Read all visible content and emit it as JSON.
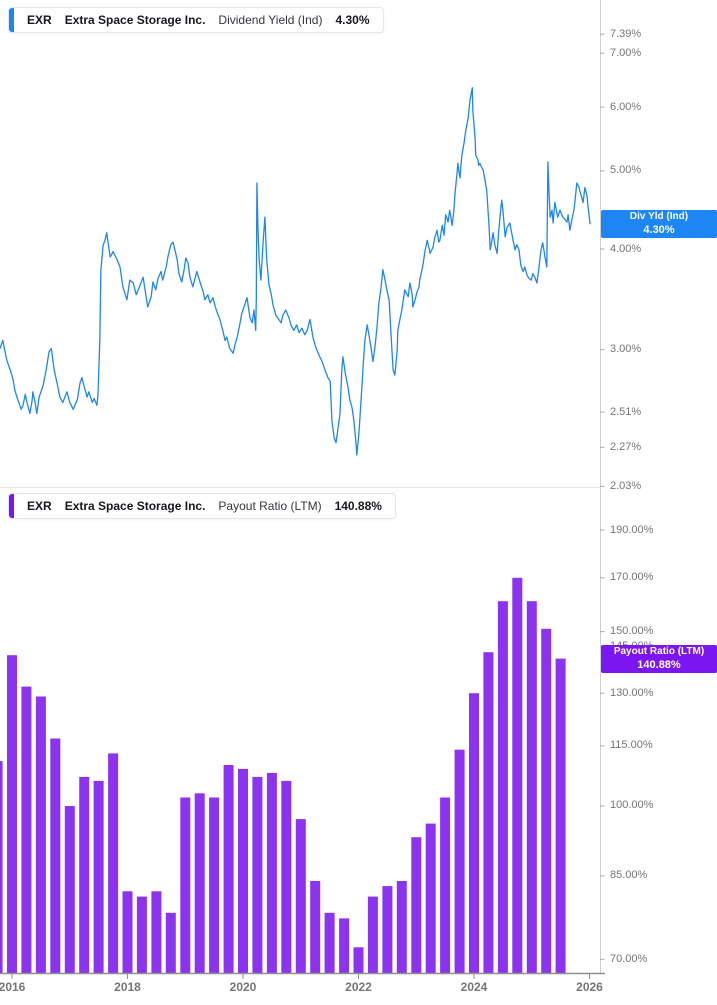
{
  "colors": {
    "line_blue": "#1d86f2",
    "badge_blue": "#1d86f2",
    "bar_purple": "#8c33f0",
    "badge_purple": "#7c16f0",
    "right_axis_line": "#cfcfcf",
    "panel_separator": "#e3e3e3",
    "bottom_axis_line": "#8f8f8f",
    "tick_mark": "#aaaaaa",
    "tick_text": "#757575"
  },
  "top_panel": {
    "legend": {
      "ticker": "EXR",
      "company": "Extra Space Storage Inc.",
      "metric": "Dividend Yield (Ind)",
      "value": "4.30%"
    },
    "badge": {
      "label": "Div Yld (Ind)",
      "value": "4.30%",
      "value_num": 4.3
    },
    "y_ticks": [
      {
        "label": "7.39%",
        "v": 7.39
      },
      {
        "label": "7.00%",
        "v": 7.0
      },
      {
        "label": "6.00%",
        "v": 6.0
      },
      {
        "label": "5.00%",
        "v": 5.0
      },
      {
        "label": "4.00%",
        "v": 4.0
      },
      {
        "label": "3.00%",
        "v": 3.0
      },
      {
        "label": "2.51%",
        "v": 2.51
      },
      {
        "label": "2.27%",
        "v": 2.27
      },
      {
        "label": "2.03%",
        "v": 2.03
      }
    ]
  },
  "bottom_panel": {
    "legend": {
      "ticker": "EXR",
      "company": "Extra Space Storage Inc.",
      "metric": "Payout Ratio (LTM)",
      "value": "140.88%"
    },
    "badge": {
      "label": "Payout Ratio (LTM)",
      "value": "140.88%",
      "value_num": 140.88
    },
    "y_ticks": [
      {
        "label": "190.00%",
        "v": 190
      },
      {
        "label": "170.00%",
        "v": 170
      },
      {
        "label": "150.00%",
        "v": 150
      },
      {
        "label": "145.00%",
        "v": 145
      },
      {
        "label": "130.00%",
        "v": 130
      },
      {
        "label": "115.00%",
        "v": 115
      },
      {
        "label": "100.00%",
        "v": 100
      },
      {
        "label": "85.00%",
        "v": 85
      },
      {
        "label": "70.00%",
        "v": 70
      }
    ]
  },
  "x_axis": {
    "year_labels": [
      "2016",
      "2018",
      "2020",
      "2022",
      "2024",
      "2026"
    ]
  },
  "chart_data": [
    {
      "type": "line",
      "title": "EXR Extra Space Storage Inc. Dividend Yield (Ind)",
      "unit": "%",
      "color": "#1d86f2",
      "y_scale": "log",
      "ylim": [
        1.95,
        7.7
      ],
      "x_range": [
        2015.79,
        2026.01
      ],
      "legend_position": "top-left",
      "grid": false,
      "points": [
        [
          2015.79,
          3.01
        ],
        [
          2015.84,
          3.08
        ],
        [
          2015.88,
          2.98
        ],
        [
          2015.91,
          2.91
        ],
        [
          2015.97,
          2.83
        ],
        [
          2016.02,
          2.75
        ],
        [
          2016.05,
          2.67
        ],
        [
          2016.1,
          2.6
        ],
        [
          2016.16,
          2.53
        ],
        [
          2016.19,
          2.56
        ],
        [
          2016.23,
          2.64
        ],
        [
          2016.26,
          2.58
        ],
        [
          2016.31,
          2.5
        ],
        [
          2016.35,
          2.6
        ],
        [
          2016.36,
          2.66
        ],
        [
          2016.4,
          2.58
        ],
        [
          2016.43,
          2.5
        ],
        [
          2016.47,
          2.62
        ],
        [
          2016.54,
          2.71
        ],
        [
          2016.59,
          2.83
        ],
        [
          2016.64,
          2.98
        ],
        [
          2016.68,
          3.01
        ],
        [
          2016.73,
          2.83
        ],
        [
          2016.78,
          2.73
        ],
        [
          2016.83,
          2.62
        ],
        [
          2016.88,
          2.58
        ],
        [
          2016.95,
          2.66
        ],
        [
          2017.0,
          2.58
        ],
        [
          2017.06,
          2.53
        ],
        [
          2017.13,
          2.6
        ],
        [
          2017.18,
          2.73
        ],
        [
          2017.21,
          2.77
        ],
        [
          2017.25,
          2.7
        ],
        [
          2017.3,
          2.62
        ],
        [
          2017.33,
          2.66
        ],
        [
          2017.39,
          2.58
        ],
        [
          2017.42,
          2.61
        ],
        [
          2017.47,
          2.56
        ],
        [
          2017.49,
          2.64
        ],
        [
          2017.52,
          3.08
        ],
        [
          2017.54,
          3.77
        ],
        [
          2017.58,
          4.05
        ],
        [
          2017.61,
          4.1
        ],
        [
          2017.64,
          4.19
        ],
        [
          2017.7,
          3.91
        ],
        [
          2017.75,
          3.97
        ],
        [
          2017.82,
          3.88
        ],
        [
          2017.87,
          3.8
        ],
        [
          2017.92,
          3.59
        ],
        [
          2017.99,
          3.46
        ],
        [
          2018.04,
          3.66
        ],
        [
          2018.1,
          3.63
        ],
        [
          2018.15,
          3.51
        ],
        [
          2018.22,
          3.61
        ],
        [
          2018.27,
          3.69
        ],
        [
          2018.35,
          3.39
        ],
        [
          2018.41,
          3.49
        ],
        [
          2018.44,
          3.64
        ],
        [
          2018.49,
          3.56
        ],
        [
          2018.53,
          3.68
        ],
        [
          2018.58,
          3.75
        ],
        [
          2018.61,
          3.66
        ],
        [
          2018.67,
          3.8
        ],
        [
          2018.7,
          3.91
        ],
        [
          2018.75,
          4.05
        ],
        [
          2018.79,
          4.08
        ],
        [
          2018.82,
          3.99
        ],
        [
          2018.86,
          3.88
        ],
        [
          2018.89,
          3.73
        ],
        [
          2018.94,
          3.64
        ],
        [
          2018.98,
          3.77
        ],
        [
          2019.01,
          3.9
        ],
        [
          2019.05,
          3.84
        ],
        [
          2019.08,
          3.69
        ],
        [
          2019.13,
          3.59
        ],
        [
          2019.17,
          3.68
        ],
        [
          2019.2,
          3.75
        ],
        [
          2019.26,
          3.63
        ],
        [
          2019.31,
          3.54
        ],
        [
          2019.34,
          3.46
        ],
        [
          2019.39,
          3.51
        ],
        [
          2019.43,
          3.43
        ],
        [
          2019.48,
          3.48
        ],
        [
          2019.52,
          3.39
        ],
        [
          2019.55,
          3.34
        ],
        [
          2019.6,
          3.27
        ],
        [
          2019.65,
          3.17
        ],
        [
          2019.69,
          3.08
        ],
        [
          2019.72,
          3.11
        ],
        [
          2019.77,
          3.01
        ],
        [
          2019.83,
          2.97
        ],
        [
          2019.86,
          3.04
        ],
        [
          2019.9,
          3.11
        ],
        [
          2019.95,
          3.24
        ],
        [
          2019.98,
          3.33
        ],
        [
          2020.03,
          3.41
        ],
        [
          2020.07,
          3.48
        ],
        [
          2020.12,
          3.29
        ],
        [
          2020.16,
          3.24
        ],
        [
          2020.19,
          3.36
        ],
        [
          2020.22,
          3.17
        ],
        [
          2020.23,
          3.46
        ],
        [
          2020.24,
          4.83
        ],
        [
          2020.26,
          4.22
        ],
        [
          2020.28,
          3.88
        ],
        [
          2020.31,
          3.66
        ],
        [
          2020.35,
          4.1
        ],
        [
          2020.38,
          4.38
        ],
        [
          2020.41,
          3.88
        ],
        [
          2020.45,
          3.61
        ],
        [
          2020.49,
          3.51
        ],
        [
          2020.52,
          3.41
        ],
        [
          2020.57,
          3.31
        ],
        [
          2020.62,
          3.27
        ],
        [
          2020.66,
          3.24
        ],
        [
          2020.69,
          3.31
        ],
        [
          2020.74,
          3.36
        ],
        [
          2020.8,
          3.28
        ],
        [
          2020.83,
          3.22
        ],
        [
          2020.88,
          3.17
        ],
        [
          2020.93,
          3.22
        ],
        [
          2020.97,
          3.15
        ],
        [
          2021.02,
          3.19
        ],
        [
          2021.07,
          3.13
        ],
        [
          2021.11,
          3.17
        ],
        [
          2021.16,
          3.27
        ],
        [
          2021.21,
          3.11
        ],
        [
          2021.26,
          3.02
        ],
        [
          2021.32,
          2.95
        ],
        [
          2021.37,
          2.9
        ],
        [
          2021.42,
          2.83
        ],
        [
          2021.47,
          2.77
        ],
        [
          2021.51,
          2.74
        ],
        [
          2021.54,
          2.45
        ],
        [
          2021.58,
          2.33
        ],
        [
          2021.61,
          2.3
        ],
        [
          2021.64,
          2.38
        ],
        [
          2021.68,
          2.5
        ],
        [
          2021.71,
          2.83
        ],
        [
          2021.73,
          2.94
        ],
        [
          2021.77,
          2.81
        ],
        [
          2021.82,
          2.69
        ],
        [
          2021.85,
          2.6
        ],
        [
          2021.89,
          2.54
        ],
        [
          2021.92,
          2.45
        ],
        [
          2021.96,
          2.28
        ],
        [
          2021.97,
          2.22
        ],
        [
          2022.01,
          2.38
        ],
        [
          2022.03,
          2.5
        ],
        [
          2022.06,
          2.71
        ],
        [
          2022.08,
          2.86
        ],
        [
          2022.11,
          3.08
        ],
        [
          2022.15,
          3.22
        ],
        [
          2022.18,
          3.13
        ],
        [
          2022.22,
          3.01
        ],
        [
          2022.25,
          2.9
        ],
        [
          2022.29,
          3.04
        ],
        [
          2022.32,
          3.2
        ],
        [
          2022.35,
          3.41
        ],
        [
          2022.39,
          3.58
        ],
        [
          2022.42,
          3.77
        ],
        [
          2022.46,
          3.66
        ],
        [
          2022.49,
          3.56
        ],
        [
          2022.53,
          3.46
        ],
        [
          2022.56,
          3.17
        ],
        [
          2022.6,
          2.83
        ],
        [
          2022.63,
          2.79
        ],
        [
          2022.67,
          3.0
        ],
        [
          2022.68,
          3.17
        ],
        [
          2022.72,
          3.28
        ],
        [
          2022.75,
          3.36
        ],
        [
          2022.79,
          3.51
        ],
        [
          2022.8,
          3.56
        ],
        [
          2022.84,
          3.51
        ],
        [
          2022.86,
          3.49
        ],
        [
          2022.89,
          3.63
        ],
        [
          2022.93,
          3.51
        ],
        [
          2022.94,
          3.39
        ],
        [
          2022.98,
          3.46
        ],
        [
          2023.01,
          3.53
        ],
        [
          2023.05,
          3.59
        ],
        [
          2023.06,
          3.66
        ],
        [
          2023.1,
          3.77
        ],
        [
          2023.12,
          3.84
        ],
        [
          2023.15,
          3.97
        ],
        [
          2023.19,
          4.1
        ],
        [
          2023.22,
          4.01
        ],
        [
          2023.24,
          3.95
        ],
        [
          2023.27,
          3.99
        ],
        [
          2023.29,
          4.02
        ],
        [
          2023.32,
          4.13
        ],
        [
          2023.36,
          4.22
        ],
        [
          2023.39,
          4.08
        ],
        [
          2023.41,
          4.1
        ],
        [
          2023.45,
          4.28
        ],
        [
          2023.48,
          4.16
        ],
        [
          2023.51,
          4.41
        ],
        [
          2023.55,
          4.32
        ],
        [
          2023.58,
          4.47
        ],
        [
          2023.62,
          4.28
        ],
        [
          2023.65,
          4.45
        ],
        [
          2023.67,
          4.67
        ],
        [
          2023.71,
          5.01
        ],
        [
          2023.72,
          5.11
        ],
        [
          2023.74,
          4.98
        ],
        [
          2023.76,
          4.9
        ],
        [
          2023.77,
          5.04
        ],
        [
          2023.79,
          5.23
        ],
        [
          2023.83,
          5.43
        ],
        [
          2023.84,
          5.51
        ],
        [
          2023.86,
          5.62
        ],
        [
          2023.9,
          5.82
        ],
        [
          2023.93,
          6.12
        ],
        [
          2023.97,
          6.34
        ],
        [
          2023.98,
          5.95
        ],
        [
          2024.0,
          5.7
        ],
        [
          2024.02,
          5.46
        ],
        [
          2024.03,
          5.23
        ],
        [
          2024.07,
          5.16
        ],
        [
          2024.08,
          5.08
        ],
        [
          2024.1,
          5.11
        ],
        [
          2024.14,
          5.04
        ],
        [
          2024.16,
          5.01
        ],
        [
          2024.19,
          4.87
        ],
        [
          2024.22,
          4.73
        ],
        [
          2024.26,
          4.28
        ],
        [
          2024.28,
          3.99
        ],
        [
          2024.31,
          4.1
        ],
        [
          2024.33,
          4.19
        ],
        [
          2024.36,
          4.05
        ],
        [
          2024.4,
          3.95
        ],
        [
          2024.43,
          4.22
        ],
        [
          2024.45,
          4.38
        ],
        [
          2024.48,
          4.6
        ],
        [
          2024.5,
          4.47
        ],
        [
          2024.54,
          4.14
        ],
        [
          2024.57,
          4.25
        ],
        [
          2024.62,
          4.31
        ],
        [
          2024.66,
          4.16
        ],
        [
          2024.71,
          3.99
        ],
        [
          2024.74,
          4.05
        ],
        [
          2024.78,
          3.99
        ],
        [
          2024.81,
          3.82
        ],
        [
          2024.85,
          3.75
        ],
        [
          2024.88,
          3.8
        ],
        [
          2024.92,
          3.71
        ],
        [
          2024.95,
          3.68
        ],
        [
          2024.99,
          3.66
        ],
        [
          2025.02,
          3.73
        ],
        [
          2025.06,
          3.68
        ],
        [
          2025.09,
          3.63
        ],
        [
          2025.12,
          3.77
        ],
        [
          2025.16,
          3.99
        ],
        [
          2025.19,
          4.07
        ],
        [
          2025.23,
          3.91
        ],
        [
          2025.26,
          3.8
        ],
        [
          2025.28,
          5.13
        ],
        [
          2025.3,
          4.67
        ],
        [
          2025.32,
          4.38
        ],
        [
          2025.35,
          4.47
        ],
        [
          2025.37,
          4.31
        ],
        [
          2025.4,
          4.57
        ],
        [
          2025.44,
          4.41
        ],
        [
          2025.45,
          4.38
        ],
        [
          2025.49,
          4.47
        ],
        [
          2025.52,
          4.41
        ],
        [
          2025.54,
          4.38
        ],
        [
          2025.58,
          4.35
        ],
        [
          2025.61,
          4.32
        ],
        [
          2025.63,
          4.41
        ],
        [
          2025.66,
          4.22
        ],
        [
          2025.7,
          4.37
        ],
        [
          2025.73,
          4.47
        ],
        [
          2025.75,
          4.6
        ],
        [
          2025.78,
          4.83
        ],
        [
          2025.82,
          4.77
        ],
        [
          2025.83,
          4.73
        ],
        [
          2025.87,
          4.62
        ],
        [
          2025.89,
          4.57
        ],
        [
          2025.92,
          4.77
        ],
        [
          2025.96,
          4.64
        ],
        [
          2025.97,
          4.54
        ],
        [
          2026.01,
          4.3
        ]
      ]
    },
    {
      "type": "bar",
      "title": "EXR Extra Space Storage Inc. Payout Ratio (LTM)",
      "unit": "%",
      "color": "#8c33f0",
      "y_scale": "log",
      "ylim": [
        67.8,
        210
      ],
      "bar_period": "quarterly",
      "first_period_t": 2015.75,
      "grid": false,
      "categories": [
        "Q3 2015",
        "Q4 2015",
        "Q1 2016",
        "Q2 2016",
        "Q3 2016",
        "Q4 2016",
        "Q1 2017",
        "Q2 2017",
        "Q3 2017",
        "Q4 2017",
        "Q1 2018",
        "Q2 2018",
        "Q3 2018",
        "Q4 2018",
        "Q1 2019",
        "Q2 2019",
        "Q3 2019",
        "Q4 2019",
        "Q1 2020",
        "Q2 2020",
        "Q3 2020",
        "Q4 2020",
        "Q1 2021",
        "Q2 2021",
        "Q3 2021",
        "Q4 2021",
        "Q1 2022",
        "Q2 2022",
        "Q3 2022",
        "Q4 2022",
        "Q1 2023",
        "Q2 2023",
        "Q3 2023",
        "Q4 2023",
        "Q1 2024",
        "Q2 2024",
        "Q3 2024",
        "Q4 2024",
        "Q1 2025",
        "Q2 2025"
      ],
      "values": [
        111,
        142,
        132,
        129,
        117,
        100,
        107,
        106,
        113,
        82,
        81,
        82,
        78,
        102,
        103,
        102,
        110,
        109,
        107,
        108,
        106,
        97,
        84,
        78,
        77,
        72,
        81,
        83,
        84,
        93,
        96,
        102,
        114,
        130,
        143,
        161,
        170,
        161,
        151,
        140.88
      ]
    }
  ]
}
